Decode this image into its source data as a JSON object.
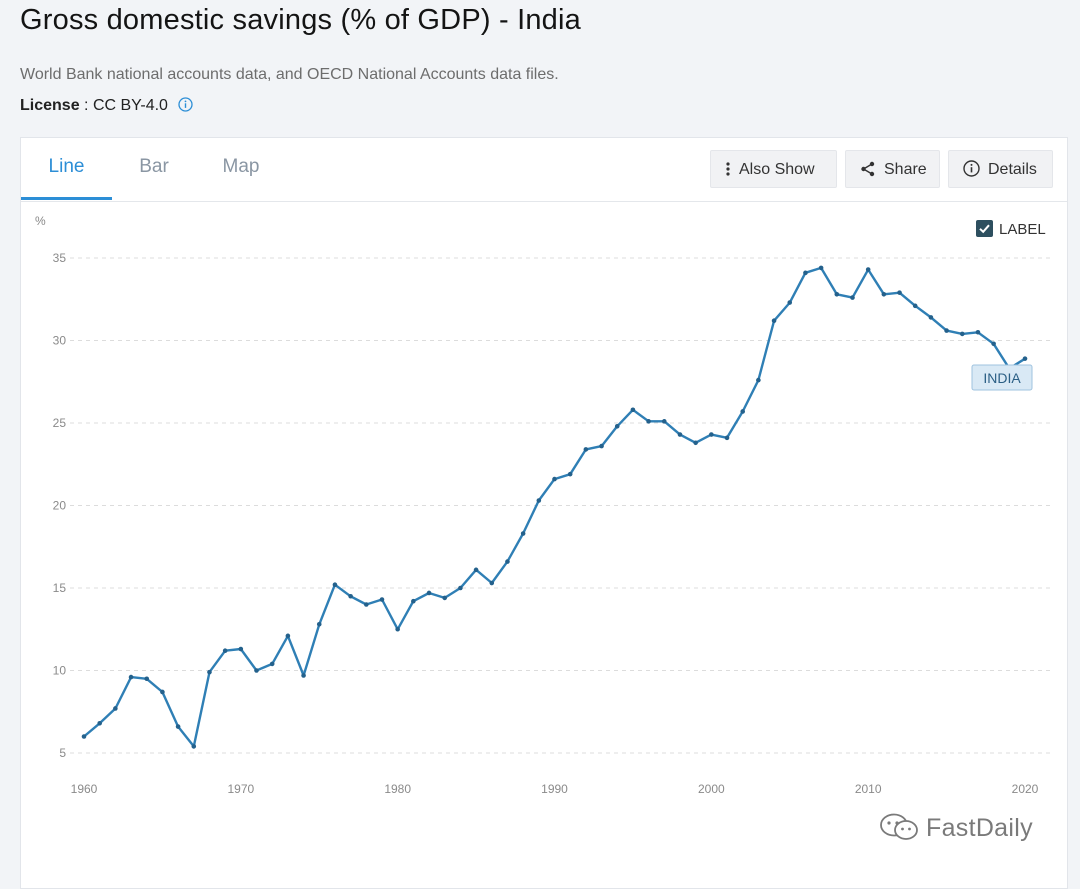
{
  "header": {
    "title": "Gross domestic savings (% of GDP) - India",
    "source": "World Bank national accounts data, and OECD National Accounts data files.",
    "license_label": "License",
    "license_value": "CC BY-4.0"
  },
  "tabs": [
    {
      "label": "Line",
      "active": true
    },
    {
      "label": "Bar",
      "active": false
    },
    {
      "label": "Map",
      "active": false
    }
  ],
  "toolbar": {
    "also_show": "Also Show",
    "share": "Share",
    "details": "Details"
  },
  "legend": {
    "checkbox_label": "LABEL",
    "checked": true
  },
  "watermark": "FastDaily",
  "colors": {
    "series": "#2f7fb5",
    "accent": "#2c8ed6",
    "series_label_bg": "#d9e9f5",
    "series_label_border": "#9fc3df"
  },
  "chart_data": {
    "type": "line",
    "title": "Gross domestic savings (% of GDP) - India",
    "ylabel": "%",
    "xlabel": "",
    "xlim": [
      1960,
      2020
    ],
    "ylim": [
      5,
      35
    ],
    "y_ticks": [
      5,
      10,
      15,
      20,
      25,
      30,
      35
    ],
    "x_ticks": [
      1960,
      1970,
      1980,
      1990,
      2000,
      2010,
      2020
    ],
    "grid": true,
    "series": [
      {
        "name": "INDIA",
        "x": [
          1960,
          1961,
          1962,
          1963,
          1964,
          1965,
          1966,
          1967,
          1968,
          1969,
          1970,
          1971,
          1972,
          1973,
          1974,
          1975,
          1976,
          1977,
          1978,
          1979,
          1980,
          1981,
          1982,
          1983,
          1984,
          1985,
          1986,
          1987,
          1988,
          1989,
          1990,
          1991,
          1992,
          1993,
          1994,
          1995,
          1996,
          1997,
          1998,
          1999,
          2000,
          2001,
          2002,
          2003,
          2004,
          2005,
          2006,
          2007,
          2008,
          2009,
          2010,
          2011,
          2012,
          2013,
          2014,
          2015,
          2016,
          2017,
          2018,
          2019,
          2020
        ],
        "values": [
          6.0,
          6.8,
          7.7,
          9.6,
          9.5,
          8.7,
          6.6,
          5.4,
          9.9,
          11.2,
          11.3,
          10.0,
          10.4,
          12.1,
          9.7,
          12.8,
          15.2,
          14.5,
          14.0,
          14.3,
          12.5,
          14.2,
          14.7,
          14.4,
          15.0,
          16.1,
          15.3,
          16.6,
          18.3,
          20.3,
          21.6,
          21.9,
          23.4,
          23.6,
          24.8,
          25.8,
          25.1,
          25.1,
          24.3,
          23.8,
          24.3,
          24.1,
          25.7,
          27.6,
          31.2,
          32.3,
          34.1,
          34.4,
          32.8,
          32.6,
          34.3,
          32.8,
          32.9,
          32.1,
          31.4,
          30.6,
          30.4,
          30.5,
          29.8,
          28.3,
          28.9
        ]
      }
    ]
  }
}
